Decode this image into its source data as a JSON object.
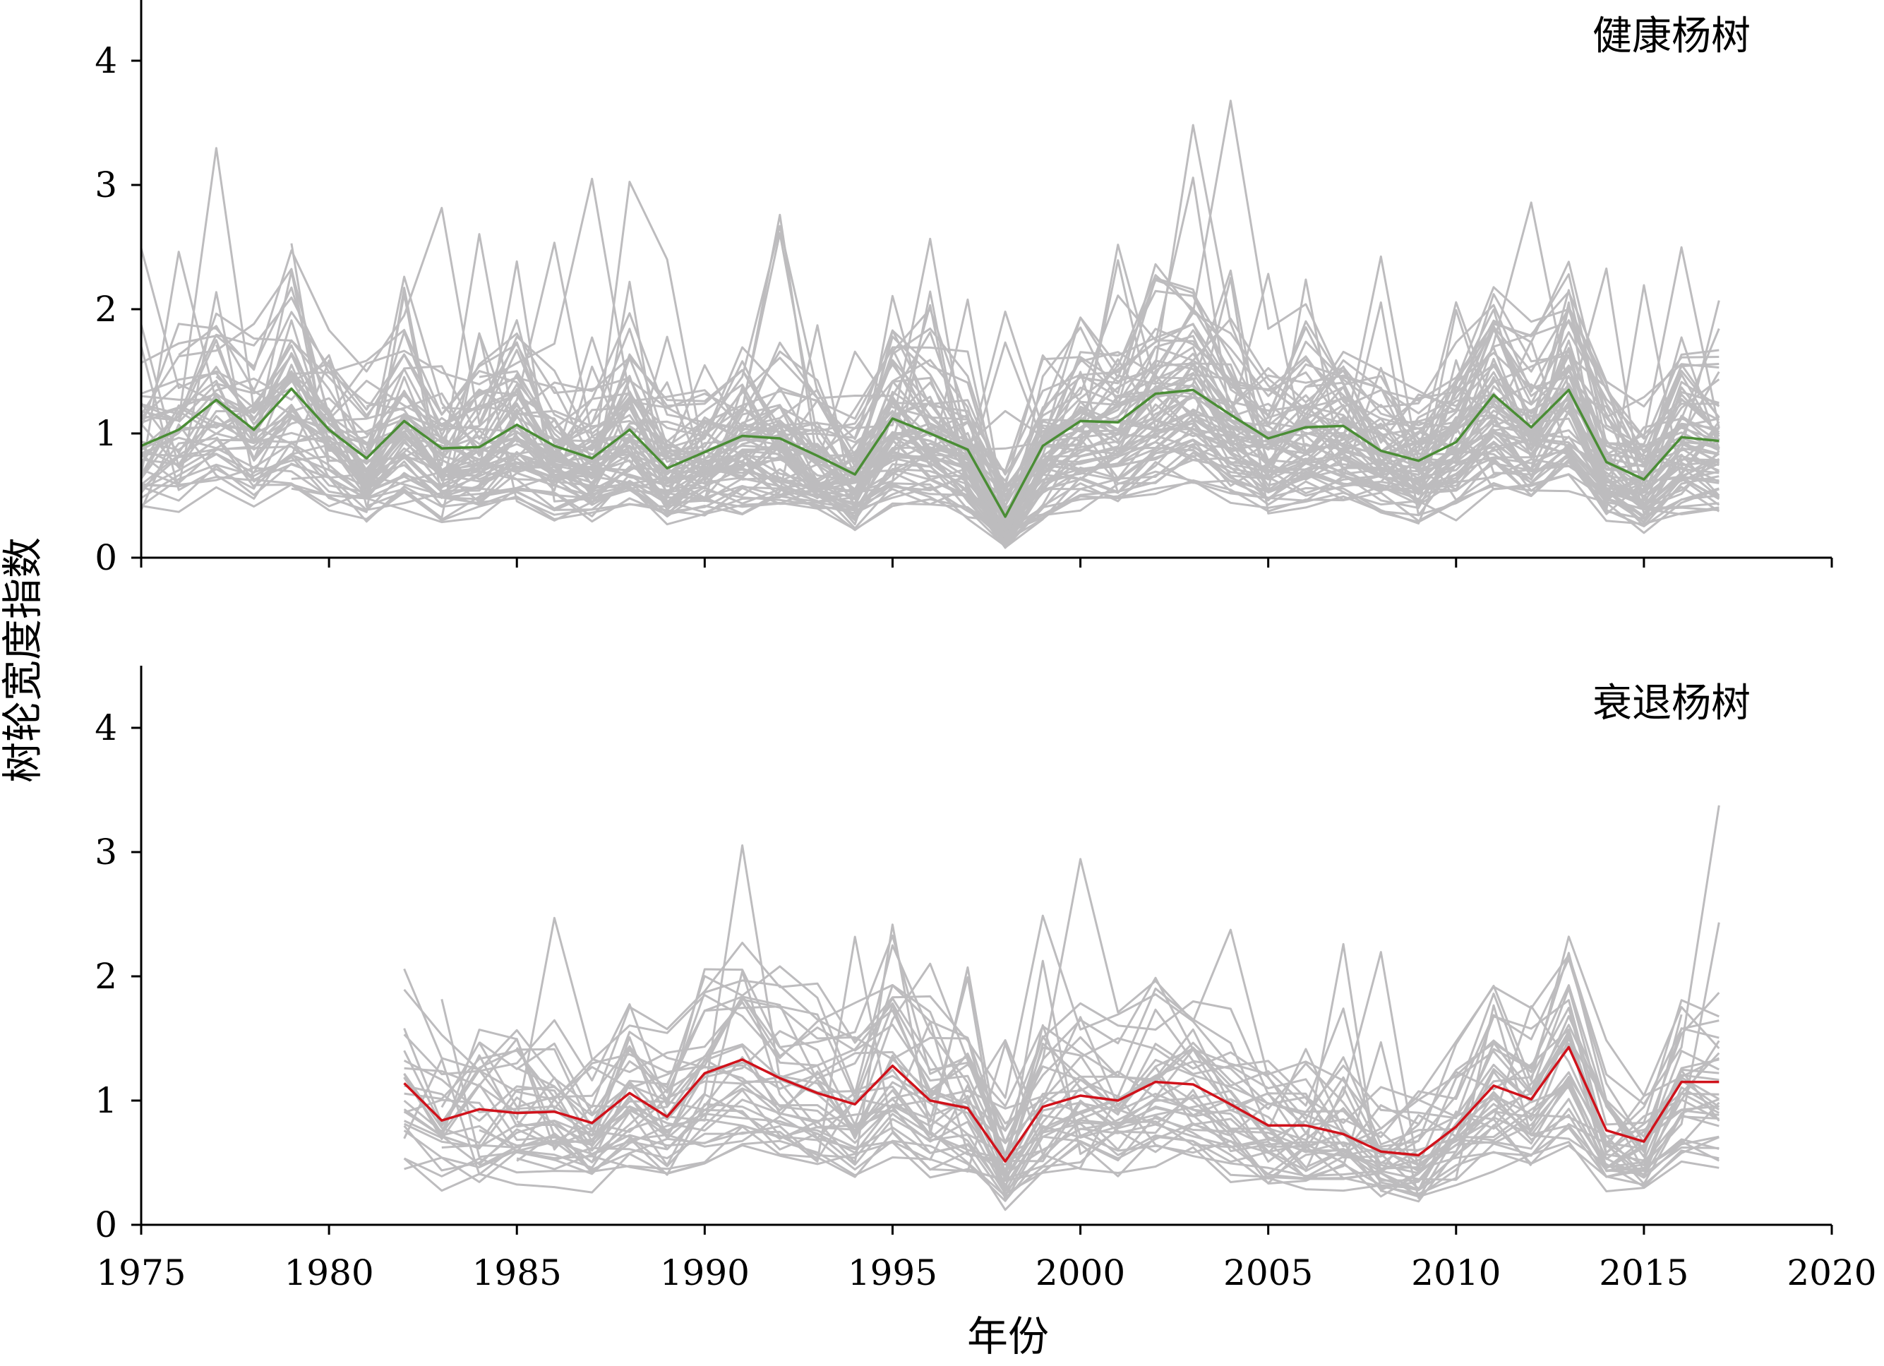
{
  "chart_data": {
    "type": "line",
    "xlabel": "年份",
    "ylabel": "树轮宽度指数",
    "xlim": [
      1975,
      2020
    ],
    "xticks": [
      1975,
      1980,
      1985,
      1990,
      1995,
      2000,
      2005,
      2010,
      2015,
      2020
    ],
    "ylim": [
      0,
      4.5
    ],
    "yticks": [
      0,
      1,
      2,
      3,
      4
    ],
    "grid": false,
    "individual_series_color": "#bdbcbe",
    "panels": [
      {
        "title": "健康杨树",
        "mean_color": "#4a8d35",
        "mean_series": {
          "x": [
            1975,
            1976,
            1977,
            1978,
            1979,
            1980,
            1981,
            1982,
            1983,
            1984,
            1985,
            1986,
            1987,
            1988,
            1989,
            1990,
            1991,
            1992,
            1993,
            1994,
            1995,
            1996,
            1997,
            1998,
            1999,
            2000,
            2001,
            2002,
            2003,
            2004,
            2005,
            2006,
            2007,
            2008,
            2009,
            2010,
            2011,
            2012,
            2013,
            2014,
            2015,
            2016,
            2017
          ],
          "y": [
            0.9,
            1.03,
            1.27,
            1.03,
            1.36,
            1.03,
            0.8,
            1.1,
            0.88,
            0.89,
            1.07,
            0.9,
            0.8,
            1.03,
            0.72,
            0.85,
            0.98,
            0.96,
            0.82,
            0.67,
            1.12,
            1.0,
            0.87,
            0.33,
            0.9,
            1.1,
            1.09,
            1.32,
            1.35,
            1.15,
            0.96,
            1.05,
            1.06,
            0.86,
            0.78,
            0.93,
            1.31,
            1.05,
            1.35,
            0.77,
            0.63,
            0.97,
            0.94
          ]
        }
      },
      {
        "title": "衰退杨树",
        "mean_color": "#d0121b",
        "mean_series": {
          "x": [
            1982,
            1983,
            1984,
            1985,
            1986,
            1987,
            1988,
            1989,
            1990,
            1991,
            1992,
            1993,
            1994,
            1995,
            1996,
            1997,
            1998,
            1999,
            2000,
            2001,
            2002,
            2003,
            2004,
            2005,
            2006,
            2007,
            2008,
            2009,
            2010,
            2011,
            2012,
            2013,
            2014,
            2015,
            2016,
            2017
          ],
          "y": [
            1.14,
            0.84,
            0.93,
            0.9,
            0.91,
            0.82,
            1.06,
            0.87,
            1.22,
            1.33,
            1.18,
            1.06,
            0.97,
            1.28,
            1.0,
            0.94,
            0.51,
            0.95,
            1.04,
            1.0,
            1.15,
            1.13,
            0.97,
            0.8,
            0.8,
            0.73,
            0.59,
            0.56,
            0.79,
            1.12,
            1.01,
            1.43,
            0.76,
            0.67,
            1.15,
            1.15
          ]
        }
      }
    ]
  }
}
